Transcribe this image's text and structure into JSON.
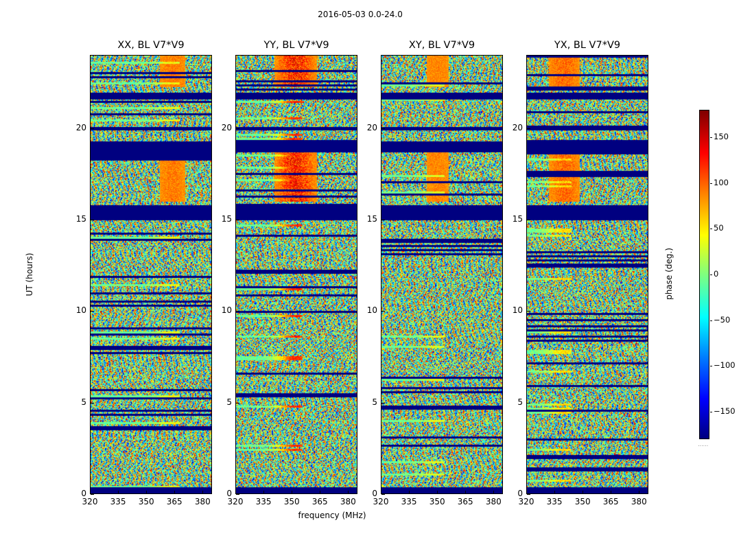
{
  "chart_data": {
    "type": "heatmap",
    "suptitle": "2016-05-03 0.0-24.0",
    "panels": [
      {
        "title": "XX, BL V7*V9",
        "feature_center": 364,
        "feature_strength": 0.35
      },
      {
        "title": "YY, BL V7*V9",
        "feature_center": 352,
        "feature_strength": 0.9
      },
      {
        "title": "XY, BL V7*V9",
        "feature_center": 350,
        "feature_strength": 0.3
      },
      {
        "title": "YX, BL V7*V9",
        "feature_center": 340,
        "feature_strength": 0.45
      }
    ],
    "xlabel": "frequency (MHz)",
    "ylabel": "UT (hours)",
    "xlim": [
      320,
      385
    ],
    "ylim": [
      0,
      24
    ],
    "xticks": [
      "320",
      "335",
      "350",
      "365",
      "380"
    ],
    "yticks": [
      "0",
      "5",
      "10",
      "15",
      "20"
    ],
    "colorbar": {
      "label": "phase (deg.)",
      "range": [
        -180,
        180
      ],
      "ticks": [
        "150",
        "100",
        "50",
        "0",
        "−50",
        "−100",
        "−150"
      ],
      "colormap": "jet",
      "footer": "......"
    },
    "flagged_time_ranges_hours": [
      [
        0.0,
        0.35
      ],
      [
        15.0,
        15.8
      ],
      [
        18.7,
        19.3
      ],
      [
        19.9,
        20.1
      ],
      [
        21.6,
        22.0
      ]
    ]
  }
}
